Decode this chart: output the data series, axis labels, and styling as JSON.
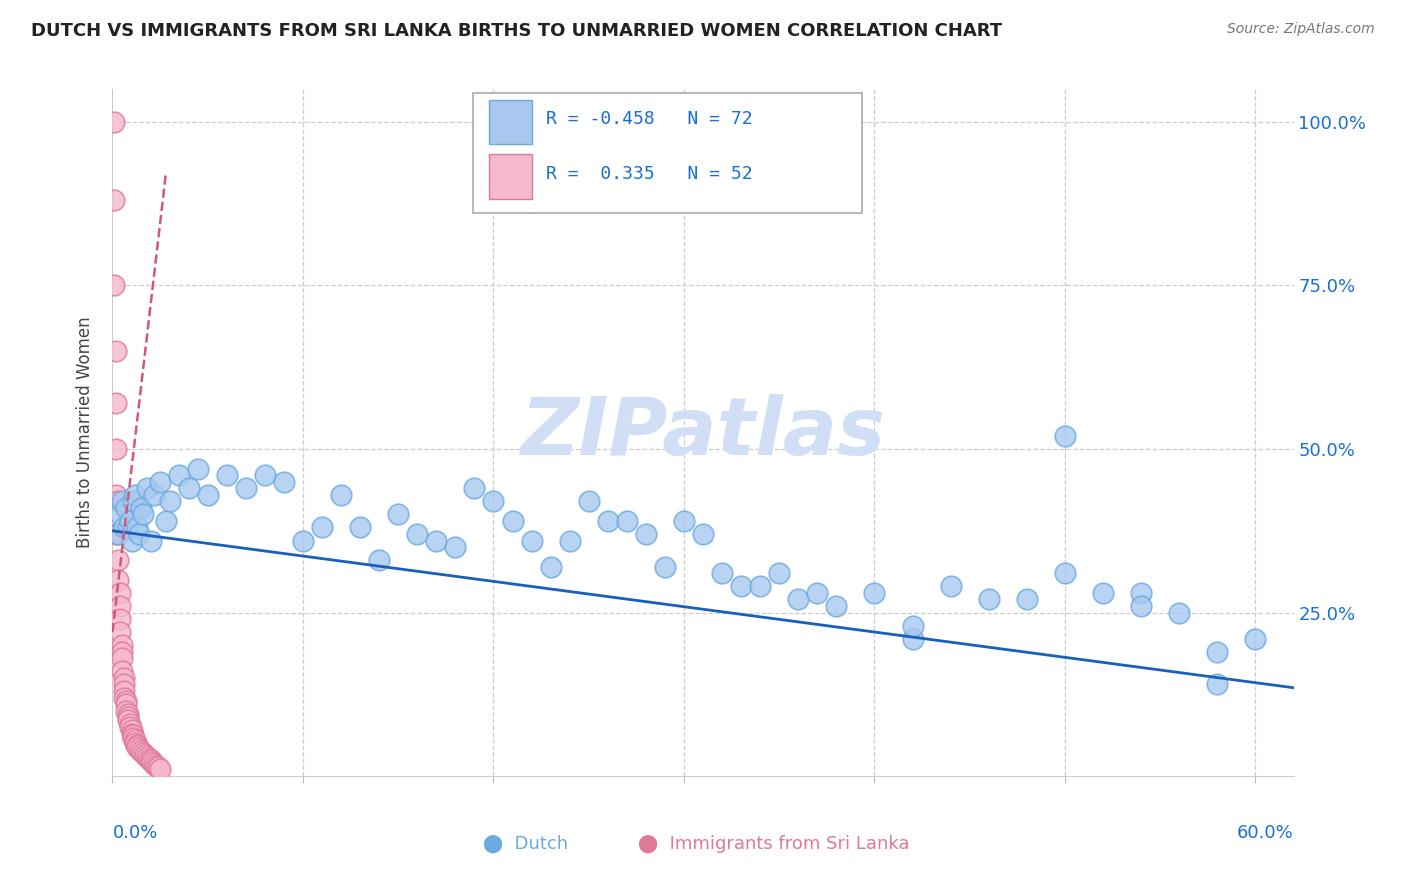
{
  "title": "DUTCH VS IMMIGRANTS FROM SRI LANKA BIRTHS TO UNMARRIED WOMEN CORRELATION CHART",
  "source": "Source: ZipAtlas.com",
  "ylabel": "Births to Unmarried Women",
  "legend_dutch_R": "-0.458",
  "legend_dutch_N": "72",
  "legend_sri_R": "0.335",
  "legend_sri_N": "52",
  "dutch_color": "#a8c8f0",
  "dutch_edge_color": "#6aaae0",
  "sri_color": "#f5b8cc",
  "sri_edge_color": "#e07898",
  "dutch_line_color": "#1a5fba",
  "sri_line_color": "#d05878",
  "watermark_color": "#d0dff5",
  "grid_color": "#cccccc",
  "right_label_color": "#1a6fd4",
  "xlim": [
    0.0,
    0.62
  ],
  "ylim": [
    0.0,
    1.05
  ],
  "dutch_trend": [
    0.0,
    0.62,
    0.375,
    0.135
  ],
  "sri_trend": [
    0.0,
    0.028,
    0.22,
    0.92
  ],
  "dutch_x": [
    0.003,
    0.004,
    0.005,
    0.006,
    0.007,
    0.008,
    0.009,
    0.01,
    0.011,
    0.012,
    0.013,
    0.014,
    0.015,
    0.016,
    0.018,
    0.02,
    0.022,
    0.025,
    0.028,
    0.03,
    0.035,
    0.04,
    0.045,
    0.05,
    0.06,
    0.07,
    0.08,
    0.09,
    0.1,
    0.11,
    0.12,
    0.13,
    0.14,
    0.15,
    0.16,
    0.17,
    0.18,
    0.19,
    0.2,
    0.21,
    0.22,
    0.23,
    0.24,
    0.25,
    0.26,
    0.27,
    0.28,
    0.29,
    0.3,
    0.31,
    0.32,
    0.33,
    0.34,
    0.35,
    0.36,
    0.37,
    0.38,
    0.4,
    0.42,
    0.44,
    0.46,
    0.48,
    0.5,
    0.52,
    0.54,
    0.56,
    0.58,
    0.6,
    0.42,
    0.5,
    0.54,
    0.58
  ],
  "dutch_y": [
    0.37,
    0.4,
    0.42,
    0.38,
    0.41,
    0.38,
    0.39,
    0.36,
    0.42,
    0.43,
    0.38,
    0.37,
    0.41,
    0.4,
    0.44,
    0.36,
    0.43,
    0.45,
    0.39,
    0.42,
    0.46,
    0.44,
    0.47,
    0.43,
    0.46,
    0.44,
    0.46,
    0.45,
    0.36,
    0.38,
    0.43,
    0.38,
    0.33,
    0.4,
    0.37,
    0.36,
    0.35,
    0.44,
    0.42,
    0.39,
    0.36,
    0.32,
    0.36,
    0.42,
    0.39,
    0.39,
    0.37,
    0.32,
    0.39,
    0.37,
    0.31,
    0.29,
    0.29,
    0.31,
    0.27,
    0.28,
    0.26,
    0.28,
    0.21,
    0.29,
    0.27,
    0.27,
    0.52,
    0.28,
    0.28,
    0.25,
    0.19,
    0.21,
    0.23,
    0.31,
    0.26,
    0.14
  ],
  "sri_x": [
    0.001,
    0.001,
    0.001,
    0.002,
    0.002,
    0.002,
    0.002,
    0.002,
    0.003,
    0.003,
    0.003,
    0.003,
    0.004,
    0.004,
    0.004,
    0.004,
    0.005,
    0.005,
    0.005,
    0.005,
    0.006,
    0.006,
    0.006,
    0.006,
    0.007,
    0.007,
    0.007,
    0.008,
    0.008,
    0.008,
    0.009,
    0.009,
    0.01,
    0.01,
    0.011,
    0.011,
    0.012,
    0.012,
    0.013,
    0.013,
    0.014,
    0.015,
    0.016,
    0.017,
    0.018,
    0.019,
    0.02,
    0.021,
    0.022,
    0.023,
    0.024,
    0.025
  ],
  "sri_y": [
    1.0,
    0.88,
    0.75,
    0.65,
    0.57,
    0.5,
    0.43,
    0.37,
    0.42,
    0.37,
    0.33,
    0.3,
    0.28,
    0.26,
    0.24,
    0.22,
    0.2,
    0.19,
    0.18,
    0.16,
    0.15,
    0.14,
    0.13,
    0.12,
    0.115,
    0.11,
    0.1,
    0.095,
    0.09,
    0.085,
    0.08,
    0.075,
    0.07,
    0.065,
    0.062,
    0.058,
    0.055,
    0.051,
    0.048,
    0.044,
    0.041,
    0.038,
    0.035,
    0.032,
    0.029,
    0.026,
    0.024,
    0.021,
    0.019,
    0.016,
    0.014,
    0.011
  ]
}
